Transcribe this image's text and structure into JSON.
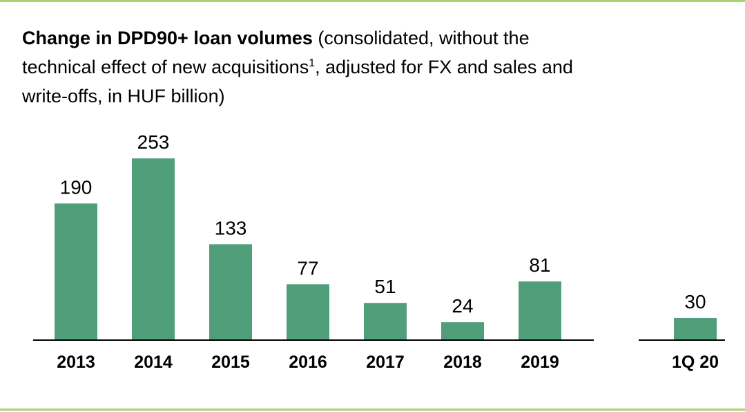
{
  "chart_data": {
    "type": "bar",
    "title": "Change in DPD90+ loan volumes",
    "subtitle": "(consolidated, without the technical effect of new acquisitions",
    "footnote_mark": "1",
    "subtitle_end": ", adjusted for FX and sales and write-offs, in HUF billion)",
    "categories": [
      "2013",
      "2014",
      "2015",
      "2016",
      "2017",
      "2018",
      "2019",
      "1Q 20"
    ],
    "values": [
      190,
      253,
      133,
      77,
      51,
      24,
      81,
      30
    ],
    "color": "#519e7b"
  }
}
